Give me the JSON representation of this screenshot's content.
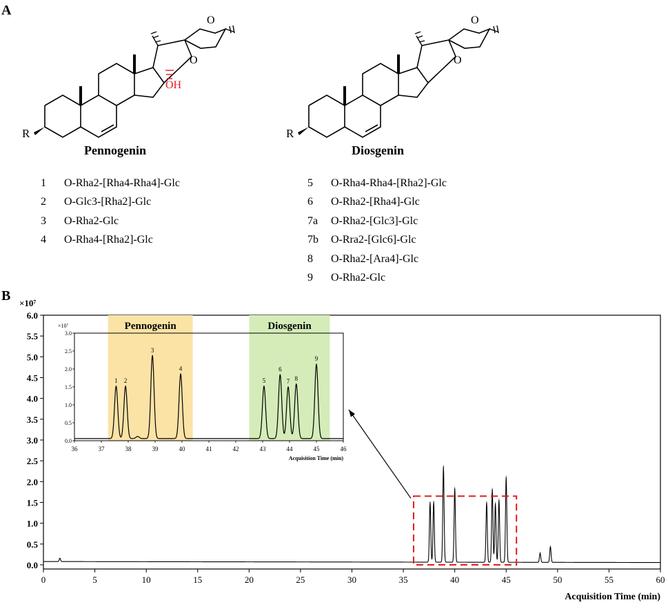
{
  "panel_a": {
    "label": "A",
    "pennogenin": {
      "title": "Pennogenin",
      "oh_label": "OH",
      "r_label": "R",
      "o_labels": [
        "O",
        "O"
      ],
      "compounds": [
        {
          "num": "1",
          "text": "O-Rha2-[Rha4-Rha4]-Glc"
        },
        {
          "num": "2",
          "text": "O-Glc3-[Rha2]-Glc"
        },
        {
          "num": "3",
          "text": "O-Rha2-Glc"
        },
        {
          "num": "4",
          "text": "O-Rha4-[Rha2]-Glc"
        }
      ]
    },
    "diosgenin": {
      "title": "Diosgenin",
      "r_label": "R",
      "o_labels": [
        "O",
        "O"
      ],
      "compounds": [
        {
          "num": "5",
          "text": "O-Rha4-Rha4-[Rha2]-Glc"
        },
        {
          "num": "6",
          "text": "O-Rha2-[Rha4]-Glc"
        },
        {
          "num": "7a",
          "text": "O-Rha2-[Glc3]-Glc"
        },
        {
          "num": "7b",
          "text": "O-Rra2-[Glc6]-Glc"
        },
        {
          "num": "8",
          "text": "O-Rha2-[Ara4]-Glc"
        },
        {
          "num": "9",
          "text": "O-Rha2-Glc"
        }
      ]
    }
  },
  "panel_b": {
    "label": "B",
    "colors": {
      "pennogenin_band": "#fbe3a6",
      "diosgenin_band": "#d5ecb9",
      "box": "#e41a1c",
      "trace": "#000000"
    },
    "chart_data": [
      {
        "type": "line",
        "id": "main",
        "xlabel": "Acquisition Time (min)",
        "ylabel": "",
        "scale_label": "×10⁷",
        "xlim": [
          0,
          60
        ],
        "ylim": [
          -0.1,
          6.0
        ],
        "xticks": [
          0,
          5,
          10,
          15,
          20,
          25,
          30,
          35,
          40,
          45,
          50,
          55,
          60
        ],
        "yticks": [
          "0.0",
          "0.5",
          "1.0",
          "1.5",
          "2.0",
          "2.5",
          "3.0",
          "3.5",
          "4.0",
          "4.5",
          "5.0",
          "5.5",
          "6.0"
        ],
        "baseline": 0.08,
        "peaks": [
          {
            "x": 1.6,
            "y": 0.16
          },
          {
            "x": 37.6,
            "y": 1.52
          },
          {
            "x": 37.95,
            "y": 1.53
          },
          {
            "x": 38.9,
            "y": 2.38
          },
          {
            "x": 40.0,
            "y": 1.86
          },
          {
            "x": 43.1,
            "y": 1.52
          },
          {
            "x": 43.65,
            "y": 1.84
          },
          {
            "x": 43.95,
            "y": 1.5
          },
          {
            "x": 44.3,
            "y": 1.58
          },
          {
            "x": 45.0,
            "y": 2.13
          },
          {
            "x": 48.3,
            "y": 0.3
          },
          {
            "x": 49.3,
            "y": 0.46
          }
        ],
        "highlight_box": {
          "x": [
            36,
            46
          ],
          "y": [
            0.0,
            1.65
          ]
        }
      },
      {
        "type": "line",
        "id": "inset",
        "xlabel": "Acquisition Time (min)",
        "ylabel": "",
        "scale_label": "×10⁷",
        "xlim": [
          36,
          46
        ],
        "ylim": [
          0,
          3.0
        ],
        "xticks": [
          36,
          37,
          38,
          39,
          40,
          41,
          42,
          43,
          44,
          45,
          46
        ],
        "yticks": [
          "0.0",
          "0.5",
          "1.0",
          "1.5",
          "2.0",
          "2.5",
          "3.0"
        ],
        "baseline": 0.06,
        "bands": [
          {
            "label": "Pennogenin",
            "x": [
              37.25,
              40.4
            ]
          },
          {
            "label": "Diosgenin",
            "x": [
              42.5,
              45.5
            ]
          }
        ],
        "peaks": [
          {
            "label": "1",
            "x": 37.55,
            "y": 1.52
          },
          {
            "label": "2",
            "x": 37.9,
            "y": 1.52
          },
          {
            "label": "3",
            "x": 38.9,
            "y": 2.37
          },
          {
            "label": "4",
            "x": 39.95,
            "y": 1.86
          },
          {
            "label": "5",
            "x": 43.05,
            "y": 1.52
          },
          {
            "label": "6",
            "x": 43.65,
            "y": 1.84
          },
          {
            "label": "7",
            "x": 43.95,
            "y": 1.5
          },
          {
            "label": "8",
            "x": 44.25,
            "y": 1.58
          },
          {
            "label": "9",
            "x": 45.0,
            "y": 2.13
          }
        ]
      }
    ]
  }
}
